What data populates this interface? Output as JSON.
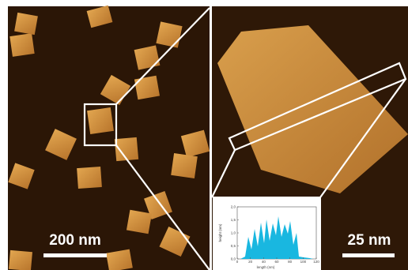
{
  "left_panel": {
    "scale_bar": "200 nm"
  },
  "right_panel": {
    "scale_bar": "25 nm"
  },
  "inset": {
    "xlabel": "length (nm)",
    "ylabel": "height (nm)",
    "xlim": [
      0,
      120
    ],
    "xticks": [
      0,
      20,
      40,
      60,
      80,
      100,
      120
    ],
    "ylim": [
      0,
      2.0
    ],
    "yticks": [
      {
        "value": 0,
        "label": "0,0"
      },
      {
        "value": 0.5,
        "label": "0,5"
      },
      {
        "value": 1.0,
        "label": "1,0"
      },
      {
        "value": 1.5,
        "label": "1,5"
      },
      {
        "value": 2.0,
        "label": "2,0"
      }
    ]
  }
}
